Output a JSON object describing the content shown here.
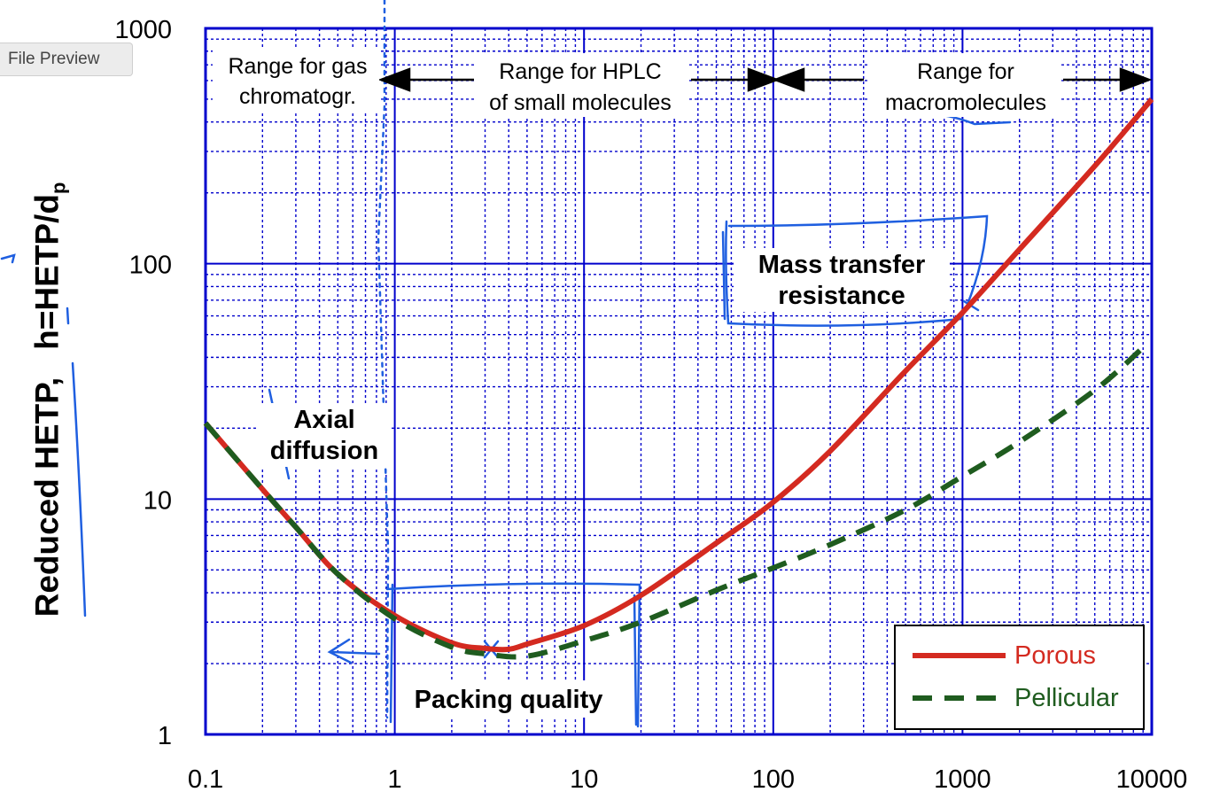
{
  "window": {
    "preview_label": "File Preview"
  },
  "chart_data": {
    "type": "line",
    "x_scale": "log",
    "y_scale": "log",
    "xlim": [
      0.1,
      10000
    ],
    "ylim": [
      1,
      1000
    ],
    "grid": true,
    "ylabel_main": "Reduced HETP,",
    "ylabel_formula": "h=HETP/d",
    "ylabel_sub": "p",
    "x_ticks": [
      "0.1",
      "1",
      "10",
      "100",
      "1000",
      "10000"
    ],
    "y_ticks": [
      "1",
      "10",
      "100",
      "1000"
    ],
    "series": [
      {
        "name": "Porous",
        "color": "#d42a20",
        "style": "solid",
        "x": [
          0.1,
          0.2,
          0.3,
          0.5,
          1,
          2,
          3,
          4,
          5,
          10,
          20,
          50,
          100,
          200,
          500,
          1000,
          2000,
          5000,
          10000
        ],
        "y": [
          21,
          11,
          7.6,
          4.8,
          3.2,
          2.45,
          2.32,
          2.3,
          2.42,
          2.9,
          3.9,
          6.5,
          9.7,
          16,
          35,
          62,
          115,
          260,
          500
        ]
      },
      {
        "name": "Pellicular",
        "color": "#1f5c1f",
        "style": "dashed",
        "x": [
          0.1,
          0.2,
          0.3,
          0.5,
          1,
          2,
          3,
          5,
          10,
          20,
          50,
          100,
          200,
          500,
          1000,
          2000,
          5000,
          9000
        ],
        "y": [
          21,
          11,
          7.6,
          4.8,
          3.1,
          2.35,
          2.2,
          2.15,
          2.5,
          3.0,
          4.1,
          5.1,
          6.4,
          9.0,
          12.5,
          17.5,
          29,
          44
        ]
      }
    ],
    "annotations": {
      "gas_range": [
        "Range for gas",
        "chromatogr."
      ],
      "hplc_range": [
        "Range for HPLC",
        "of small molecules"
      ],
      "macro_range": [
        "Range for",
        "macromolecules"
      ],
      "axial": [
        "Axial",
        "diffusion"
      ],
      "mass": [
        "Mass transfer",
        "resistance"
      ],
      "packing": "Packing quality"
    },
    "legend": {
      "position": "bottom-right",
      "entries": [
        "Porous",
        "Pellicular"
      ]
    }
  }
}
